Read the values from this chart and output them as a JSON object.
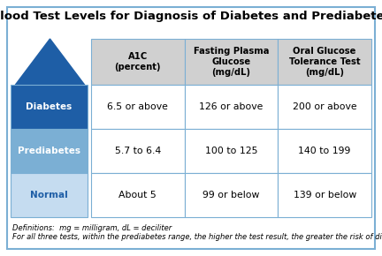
{
  "title": "Blood Test Levels for Diagnosis of Diabetes and Prediabetes",
  "col_headers": [
    "A1C\n(percent)",
    "Fasting Plasma\nGlucose\n(mg/dL)",
    "Oral Glucose\nTolerance Test\n(mg/dL)"
  ],
  "row_labels": [
    "Diabetes",
    "Prediabetes",
    "Normal"
  ],
  "row_label_colors": [
    "#1E5EA6",
    "#7BAFD4",
    "#C5DCF0"
  ],
  "row_label_text_colors": [
    "#FFFFFF",
    "#FFFFFF",
    "#1E5EA6"
  ],
  "cell_data": [
    [
      "6.5 or above",
      "126 or above",
      "200 or above"
    ],
    [
      "5.7 to 6.4",
      "100 to 125",
      "140 to 199"
    ],
    [
      "About 5",
      "99 or below",
      "139 or below"
    ]
  ],
  "header_bg": "#D0D0D0",
  "cell_bg": "#FFFFFF",
  "border_color": "#7BAFD4",
  "arrow_color": "#1E5EA6",
  "footer_line1": "Definitions:  mg = milligram, dL = deciliter",
  "footer_line2": "For all three tests, within the prediabetes range, the higher the test result, the greater the risk of diabetes.",
  "outer_border_color": "#7BAFD4",
  "background_color": "#FFFFFF",
  "title_fontsize": 9.5,
  "header_fontsize": 7.2,
  "cell_fontsize": 7.8,
  "footer_fontsize": 6.0,
  "row_label_fontsize": 7.5
}
